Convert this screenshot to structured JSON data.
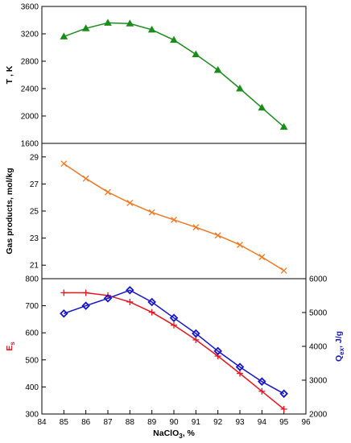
{
  "chart_data": [
    {
      "type": "line",
      "ylabel": "T , K",
      "ylim": [
        1600,
        3600
      ],
      "yticks": [
        1600,
        2000,
        2400,
        2800,
        3200,
        3600
      ],
      "ytick_labels": [
        "1600",
        "2000",
        "2400",
        "2800",
        "3200",
        "3600"
      ],
      "xlim": [
        84,
        96
      ],
      "grid": false,
      "series": [
        {
          "color": "#1a8c1a",
          "marker": "triangle",
          "x": [
            85,
            86,
            87,
            88,
            89,
            90,
            91,
            92,
            93,
            94,
            95
          ],
          "y": [
            3160,
            3280,
            3360,
            3350,
            3260,
            3110,
            2900,
            2670,
            2400,
            2120,
            1840
          ]
        }
      ]
    },
    {
      "type": "line",
      "ylabel": "Gas products, mol/kg",
      "ylim": [
        20,
        30
      ],
      "yticks": [
        21,
        23,
        25,
        27,
        29
      ],
      "ytick_labels": [
        "21",
        "23",
        "25",
        "27",
        "29"
      ],
      "xlim": [
        84,
        96
      ],
      "grid": false,
      "series": [
        {
          "color": "#f07820",
          "marker": "x",
          "x": [
            85,
            86,
            87,
            88,
            89,
            90,
            91,
            92,
            93,
            94,
            95
          ],
          "y": [
            28.5,
            27.4,
            26.4,
            25.6,
            24.9,
            24.35,
            23.8,
            23.2,
            22.5,
            21.6,
            20.6
          ]
        }
      ]
    },
    {
      "type": "line",
      "xlabel": "NaClO",
      "xlabel_sub": "3",
      "xlabel_tail": ", %",
      "xlim": [
        84,
        96
      ],
      "xticks": [
        84,
        85,
        86,
        87,
        88,
        89,
        90,
        91,
        92,
        93,
        94,
        95,
        96
      ],
      "xtick_labels": [
        "84",
        "85",
        "86",
        "87",
        "88",
        "89",
        "90",
        "91",
        "92",
        "93",
        "94",
        "95",
        "96"
      ],
      "ylabel": "E",
      "ylabel_sub": "s",
      "ylim": [
        300,
        800
      ],
      "yticks": [
        300,
        400,
        500,
        600,
        700,
        800
      ],
      "ytick_labels": [
        "300",
        "400",
        "500",
        "600",
        "700",
        "800"
      ],
      "y2label": "Q",
      "y2label_sub": "ex",
      "y2label_tail": ", J/g",
      "y2lim": [
        2000,
        6000
      ],
      "y2ticks": [
        2000,
        3000,
        4000,
        5000,
        6000
      ],
      "y2tick_labels": [
        "2000",
        "3000",
        "4000",
        "5000",
        "6000"
      ],
      "left_axis_color": "#e8141e",
      "right_axis_color": "#1414c8",
      "grid": false,
      "series": [
        {
          "color": "#e8141e",
          "marker": "plus",
          "axis": "left",
          "x": [
            85,
            86,
            87,
            88,
            89,
            90,
            91,
            92,
            93,
            94,
            95
          ],
          "y": [
            748,
            748,
            738,
            714,
            676,
            628,
            574,
            514,
            450,
            384,
            318
          ]
        },
        {
          "color": "#1414c8",
          "marker": "diamond",
          "axis": "right",
          "x": [
            85,
            86,
            87,
            88,
            89,
            90,
            91,
            92,
            93,
            94,
            95
          ],
          "y": [
            4970,
            5200,
            5420,
            5660,
            5310,
            4840,
            4380,
            3860,
            3390,
            2960,
            2600
          ]
        }
      ]
    }
  ]
}
